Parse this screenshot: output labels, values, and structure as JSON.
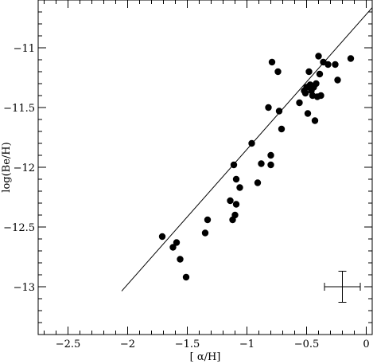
{
  "chart_data": {
    "type": "scatter",
    "title": "",
    "xlabel": "[ α/H]",
    "ylabel": "log(Be/H)",
    "xlim": [
      -2.75,
      0.05
    ],
    "ylim": [
      -13.4,
      -10.6
    ],
    "x_ticks": [
      -2.5,
      -2,
      -1.5,
      -1,
      -0.5,
      0
    ],
    "x_tick_labels": [
      "−2.5",
      "−2",
      "−1.5",
      "−1",
      "−0.5",
      "0"
    ],
    "y_ticks": [
      -11,
      -11.5,
      -12,
      -12.5,
      -13
    ],
    "y_tick_labels": [
      "−11",
      "−11.5",
      "−12",
      "−12.5",
      "−13"
    ],
    "x_minor_step": 0.1,
    "y_minor_step": 0.1,
    "grid": false,
    "legend": "none",
    "series": [
      {
        "marker": "filled-circle",
        "color": "#000000",
        "points": [
          [
            -1.71,
            -12.58
          ],
          [
            -1.62,
            -12.67
          ],
          [
            -1.59,
            -12.63
          ],
          [
            -1.56,
            -12.77
          ],
          [
            -1.51,
            -12.92
          ],
          [
            -1.35,
            -12.55
          ],
          [
            -1.33,
            -12.44
          ],
          [
            -1.14,
            -12.28
          ],
          [
            -1.12,
            -12.44
          ],
          [
            -1.11,
            -11.98
          ],
          [
            -1.1,
            -12.4
          ],
          [
            -1.09,
            -12.1
          ],
          [
            -1.09,
            -12.31
          ],
          [
            -1.06,
            -12.17
          ],
          [
            -0.96,
            -11.8
          ],
          [
            -0.91,
            -12.13
          ],
          [
            -0.88,
            -11.97
          ],
          [
            -0.8,
            -11.98
          ],
          [
            -0.8,
            -11.9
          ],
          [
            -0.82,
            -11.5
          ],
          [
            -0.79,
            -11.12
          ],
          [
            -0.74,
            -11.2
          ],
          [
            -0.73,
            -11.53
          ],
          [
            -0.71,
            -11.68
          ],
          [
            -0.56,
            -11.46
          ],
          [
            -0.51,
            -11.38
          ],
          [
            -0.5,
            -11.33
          ],
          [
            -0.49,
            -11.55
          ],
          [
            -0.48,
            -11.2
          ],
          [
            -0.47,
            -11.31
          ],
          [
            -0.46,
            -11.36
          ],
          [
            -0.45,
            -11.4
          ],
          [
            -0.44,
            -11.33
          ],
          [
            -0.43,
            -11.61
          ],
          [
            -0.42,
            -11.3
          ],
          [
            -0.41,
            -11.41
          ],
          [
            -0.4,
            -11.07
          ],
          [
            -0.39,
            -11.22
          ],
          [
            -0.38,
            -11.4
          ],
          [
            -0.36,
            -11.12
          ],
          [
            -0.32,
            -11.14
          ],
          [
            -0.26,
            -11.14
          ],
          [
            -0.24,
            -11.27
          ],
          [
            -0.13,
            -11.09
          ],
          [
            -0.52,
            -11.36
          ]
        ]
      }
    ],
    "fit_line": {
      "slope": 1.13,
      "intercept": -10.72,
      "x_range": [
        -2.05,
        0.05
      ]
    },
    "error_bar": {
      "x": -0.2,
      "y": -13.0,
      "x_err": 0.15,
      "y_err": 0.13
    }
  }
}
